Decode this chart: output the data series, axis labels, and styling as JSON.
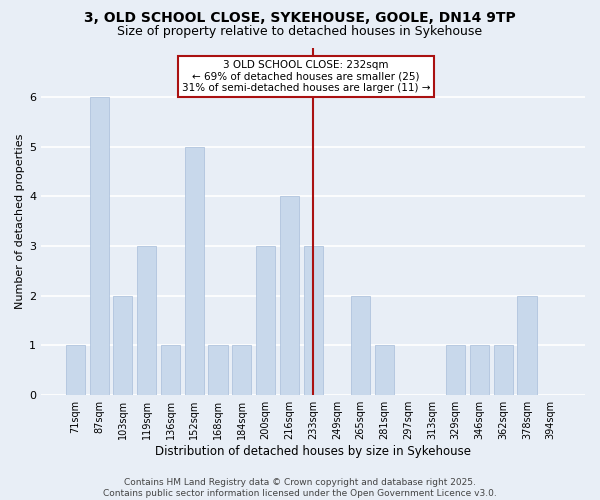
{
  "title1": "3, OLD SCHOOL CLOSE, SYKEHOUSE, GOOLE, DN14 9TP",
  "title2": "Size of property relative to detached houses in Sykehouse",
  "xlabel": "Distribution of detached houses by size in Sykehouse",
  "ylabel": "Number of detached properties",
  "categories": [
    "71sqm",
    "87sqm",
    "103sqm",
    "119sqm",
    "136sqm",
    "152sqm",
    "168sqm",
    "184sqm",
    "200sqm",
    "216sqm",
    "233sqm",
    "249sqm",
    "265sqm",
    "281sqm",
    "297sqm",
    "313sqm",
    "329sqm",
    "346sqm",
    "362sqm",
    "378sqm",
    "394sqm"
  ],
  "values": [
    1,
    6,
    2,
    3,
    1,
    5,
    1,
    1,
    3,
    4,
    3,
    0,
    2,
    1,
    0,
    0,
    1,
    1,
    1,
    2,
    0
  ],
  "bar_color": "#c8d8eb",
  "bar_edge_color": "#b0c4de",
  "vline_index": 10,
  "vline_color": "#aa1111",
  "annotation_text": "3 OLD SCHOOL CLOSE: 232sqm\n← 69% of detached houses are smaller (25)\n31% of semi-detached houses are larger (11) →",
  "annotation_box_edgecolor": "#aa1111",
  "ylim": [
    0,
    7
  ],
  "yticks": [
    0,
    1,
    2,
    3,
    4,
    5,
    6
  ],
  "bg_color": "#e8eef6",
  "plot_bg_color": "#e8eef6",
  "footer_text": "Contains HM Land Registry data © Crown copyright and database right 2025.\nContains public sector information licensed under the Open Government Licence v3.0.",
  "grid_color": "#ffffff",
  "title1_fontsize": 10,
  "title2_fontsize": 9,
  "xlabel_fontsize": 8.5,
  "ylabel_fontsize": 8,
  "tick_fontsize": 7,
  "annot_fontsize": 7.5,
  "footer_fontsize": 6.5
}
